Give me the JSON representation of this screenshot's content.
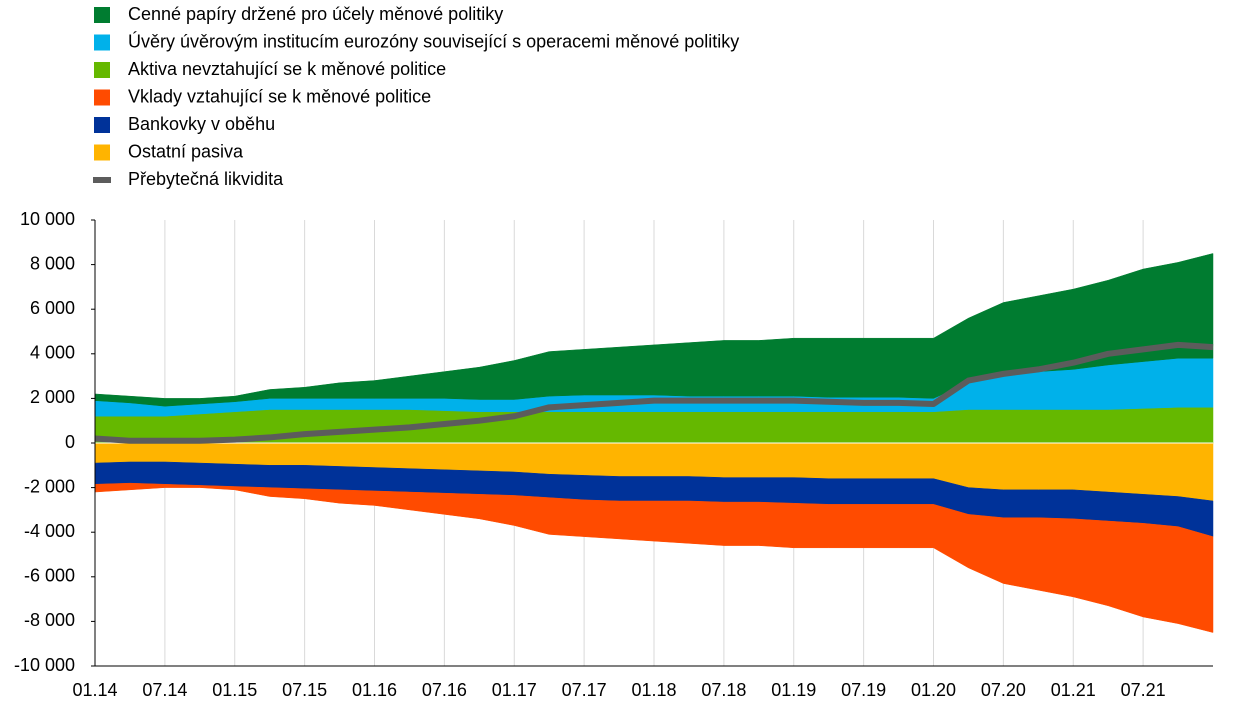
{
  "chart_data": {
    "type": "stacked_area",
    "categories": [
      "01.14",
      null,
      "07.14",
      null,
      "01.15",
      null,
      "07.15",
      null,
      "01.16",
      null,
      "07.16",
      null,
      "01.17",
      null,
      "07.17",
      null,
      "01.18",
      null,
      "07.18",
      null,
      "01.19",
      null,
      "07.19",
      null,
      "01.20",
      null,
      "07.20",
      null,
      "01.21",
      null,
      "07.21",
      null,
      null
    ],
    "series": [
      {
        "name": "Cenné papíry držené pro účely měnové politiky",
        "color": "#007c30",
        "values": [
          300,
          300,
          350,
          250,
          250,
          400,
          500,
          700,
          800,
          1000,
          1200,
          1450,
          1750,
          2000,
          2050,
          2150,
          2250,
          2400,
          2500,
          2500,
          2600,
          2650,
          2650,
          2650,
          2700,
          2900,
          3200,
          3400,
          3600,
          3800,
          4150,
          4300,
          4700
        ]
      },
      {
        "name": "Úvěry úvěrovým institucím eurozóny související s operacemi měnové politiky",
        "color": "#00b1ea",
        "values": [
          700,
          600,
          450,
          450,
          450,
          500,
          500,
          500,
          500,
          500,
          550,
          550,
          550,
          700,
          750,
          750,
          750,
          700,
          700,
          700,
          700,
          650,
          650,
          650,
          600,
          1200,
          1600,
          1700,
          1800,
          2000,
          2100,
          2200,
          2200
        ]
      },
      {
        "name": "Aktiva nevztahující se k měnové politice",
        "color": "#65b800",
        "values": [
          1200,
          1200,
          1200,
          1300,
          1400,
          1500,
          1500,
          1500,
          1500,
          1500,
          1450,
          1400,
          1400,
          1400,
          1400,
          1400,
          1400,
          1400,
          1400,
          1400,
          1400,
          1400,
          1400,
          1400,
          1400,
          1500,
          1500,
          1500,
          1500,
          1500,
          1550,
          1600,
          1600
        ]
      },
      {
        "name": "Vklady vztahující se k měnové politice",
        "color": "#ff4b00",
        "values": [
          -350,
          -300,
          -150,
          -100,
          -150,
          -400,
          -450,
          -600,
          -650,
          -800,
          -950,
          -1100,
          -1350,
          -1650,
          -1650,
          -1700,
          -1800,
          -1900,
          -1950,
          -1950,
          -2000,
          -1950,
          -1950,
          -1950,
          -1950,
          -2400,
          -2950,
          -3250,
          -3500,
          -3800,
          -4200,
          -4350,
          -4300
        ]
      },
      {
        "name": "Bankovky v oběhu",
        "color": "#003299",
        "values": [
          -950,
          -950,
          -1000,
          -1000,
          -1000,
          -1000,
          -1050,
          -1050,
          -1050,
          -1050,
          -1050,
          -1050,
          -1050,
          -1050,
          -1100,
          -1100,
          -1100,
          -1100,
          -1100,
          -1100,
          -1150,
          -1150,
          -1150,
          -1150,
          -1150,
          -1200,
          -1250,
          -1250,
          -1300,
          -1300,
          -1300,
          -1350,
          -1600
        ]
      },
      {
        "name": "Ostatní pasiva",
        "color": "#ffb400",
        "values": [
          -900,
          -850,
          -850,
          -900,
          -950,
          -1000,
          -1000,
          -1050,
          -1100,
          -1150,
          -1200,
          -1250,
          -1300,
          -1400,
          -1450,
          -1500,
          -1500,
          -1500,
          -1550,
          -1550,
          -1550,
          -1600,
          -1600,
          -1600,
          -1600,
          -2000,
          -2100,
          -2100,
          -2100,
          -2200,
          -2300,
          -2400,
          -2600
        ]
      },
      {
        "name": "Přebytečná likvidita",
        "color": "#5c5c5c",
        "type": "line",
        "values": [
          200,
          100,
          100,
          100,
          150,
          250,
          400,
          500,
          600,
          700,
          850,
          1000,
          1200,
          1600,
          1700,
          1800,
          1900,
          1900,
          1900,
          1900,
          1900,
          1850,
          1800,
          1800,
          1750,
          2800,
          3100,
          3300,
          3600,
          4000,
          4200,
          4400,
          4300
        ]
      }
    ],
    "ylim": [
      -10000,
      10000
    ],
    "yticks": [
      {
        "value": -10000,
        "label": "-10 000"
      },
      {
        "value": -8000,
        "label": "-8 000"
      },
      {
        "value": -6000,
        "label": "-6 000"
      },
      {
        "value": -4000,
        "label": "-4 000"
      },
      {
        "value": -2000,
        "label": "-2 000"
      },
      0,
      {
        "value": 2000,
        "label": "2 000"
      },
      {
        "value": 4000,
        "label": "4 000"
      },
      {
        "value": 6000,
        "label": "6 000"
      },
      {
        "value": 8000,
        "label": "8 000"
      },
      {
        "value": 10000,
        "label": "10 000"
      }
    ],
    "grid": "x",
    "legend": "top-left"
  }
}
